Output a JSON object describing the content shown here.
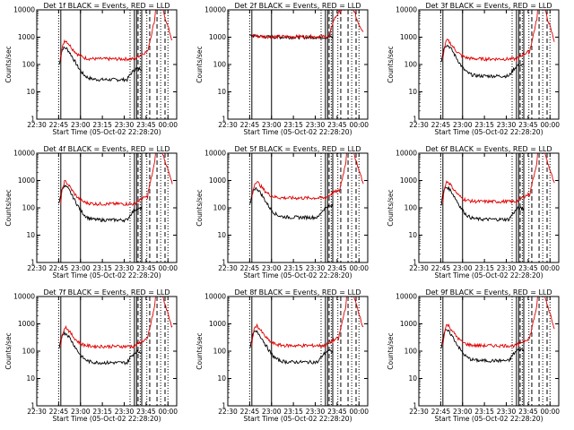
{
  "figure": {
    "title_template": "Det {id}f BLACK = Events, RED = LLD",
    "xlabel": "Start Time (05-Oct-02 22:28:20)",
    "ylabel": "Counts/sec"
  },
  "colors": {
    "events": "#000000",
    "lld": "#e00000",
    "axes": "#000000",
    "background": "#ffffff"
  },
  "chart_data": {
    "type": "line",
    "yscale": "log",
    "ylim": [
      1,
      10000
    ],
    "y_ticks": [
      1,
      10,
      100,
      1000,
      10000
    ],
    "y_tick_labels": [
      "1",
      "10",
      "100",
      "1000",
      "10000"
    ],
    "xlim_minutes": [
      0,
      96
    ],
    "x_ticks_minutes": [
      0,
      15,
      30,
      45,
      60,
      75,
      90
    ],
    "x_tick_labels": [
      "22:30",
      "22:45",
      "23:00",
      "23:15",
      "23:30",
      "23:45",
      "00:00"
    ],
    "solid_markers_minutes": [
      16.5,
      30,
      67,
      68.5,
      72
    ],
    "dotted_markers_minutes": [
      15,
      64,
      71,
      75.5,
      85,
      90
    ],
    "dashed_markers_minutes": [
      69.5,
      77.5,
      82.5,
      88
    ],
    "series": [
      {
        "name": "Events",
        "color": "#000000",
        "x_start": 15,
        "x_end": 72,
        "x_step": 0.5
      },
      {
        "name": "LLD",
        "color": "#e00000",
        "x_start": 16.5,
        "x_end": 93,
        "x_step": 0.5
      }
    ],
    "panels": [
      {
        "id": "1",
        "title": "Det 1f BLACK = Events, RED = LLD",
        "lld_peak": 750,
        "lld_base": 160,
        "ev_peak": 400,
        "ev_base": 28,
        "flat_lld": false
      },
      {
        "id": "2",
        "title": "Det 2f BLACK = Events, RED = LLD",
        "lld_peak": 1250,
        "lld_base": 1050,
        "ev_peak": 1150,
        "ev_base": 1000,
        "flat_lld": true
      },
      {
        "id": "3",
        "title": "Det 3f BLACK = Events, RED = LLD",
        "lld_peak": 750,
        "lld_base": 160,
        "ev_peak": 500,
        "ev_base": 38,
        "flat_lld": false
      },
      {
        "id": "4",
        "title": "Det 4f BLACK = Events, RED = LLD",
        "lld_peak": 900,
        "lld_base": 140,
        "ev_peak": 600,
        "ev_base": 36,
        "flat_lld": false
      },
      {
        "id": "5",
        "title": "Det 5f BLACK = Events, RED = LLD",
        "lld_peak": 900,
        "lld_base": 230,
        "ev_peak": 500,
        "ev_base": 45,
        "flat_lld": false
      },
      {
        "id": "6",
        "title": "Det 6f BLACK = Events, RED = LLD",
        "lld_peak": 900,
        "lld_base": 170,
        "ev_peak": 550,
        "ev_base": 38,
        "flat_lld": false
      },
      {
        "id": "7",
        "title": "Det 7f BLACK = Events, RED = LLD",
        "lld_peak": 750,
        "lld_base": 150,
        "ev_peak": 450,
        "ev_base": 38,
        "flat_lld": false
      },
      {
        "id": "8",
        "title": "Det 8f BLACK = Events, RED = LLD",
        "lld_peak": 850,
        "lld_base": 160,
        "ev_peak": 500,
        "ev_base": 40,
        "flat_lld": false
      },
      {
        "id": "9",
        "title": "Det 9f BLACK = Events, RED = LLD",
        "lld_peak": 900,
        "lld_base": 160,
        "ev_peak": 550,
        "ev_base": 45,
        "flat_lld": false
      }
    ]
  }
}
